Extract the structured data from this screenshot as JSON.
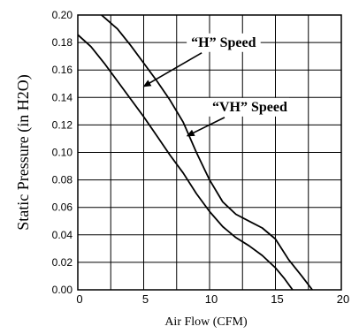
{
  "chart_data": {
    "type": "line",
    "title": "",
    "xlabel": "Air Flow (CFM)",
    "ylabel": "Static Pressure (in H2O)",
    "xlim": [
      0,
      20
    ],
    "ylim": [
      0.0,
      0.2
    ],
    "x_ticks": [
      "0",
      "5",
      "10",
      "15",
      "20"
    ],
    "y_ticks": [
      "0.00",
      "0.02",
      "0.04",
      "0.06",
      "0.08",
      "0.10",
      "0.12",
      "0.14",
      "0.16",
      "0.18",
      "0.20"
    ],
    "grid": true,
    "series": [
      {
        "name": "“H” Speed",
        "x": [
          -0.5,
          1,
          2,
          3,
          4,
          5,
          6,
          7,
          8,
          9,
          10,
          11,
          12,
          13,
          14,
          15,
          15.7,
          16.3
        ],
        "y": [
          0.19,
          0.177,
          0.165,
          0.152,
          0.139,
          0.126,
          0.112,
          0.098,
          0.085,
          0.07,
          0.057,
          0.046,
          0.038,
          0.032,
          0.025,
          0.016,
          0.008,
          0.0
        ]
      },
      {
        "name": "“VH” Speed",
        "x": [
          1.8,
          3,
          4,
          5,
          6,
          7,
          8,
          9,
          10,
          11,
          12,
          13,
          14,
          15,
          16,
          17,
          17.8
        ],
        "y": [
          0.2,
          0.19,
          0.178,
          0.165,
          0.152,
          0.138,
          0.122,
          0.1,
          0.08,
          0.064,
          0.055,
          0.05,
          0.045,
          0.037,
          0.022,
          0.01,
          0.0
        ]
      }
    ],
    "annotations": [
      {
        "text": "“H” Speed",
        "series": 0,
        "label_x": 8.6,
        "label_y": 0.177,
        "arrow_to": [
          5.0,
          0.148
        ]
      },
      {
        "text": "“VH” Speed",
        "series": 1,
        "label_x": 10.2,
        "label_y": 0.13,
        "arrow_to": [
          8.3,
          0.112
        ]
      }
    ]
  }
}
